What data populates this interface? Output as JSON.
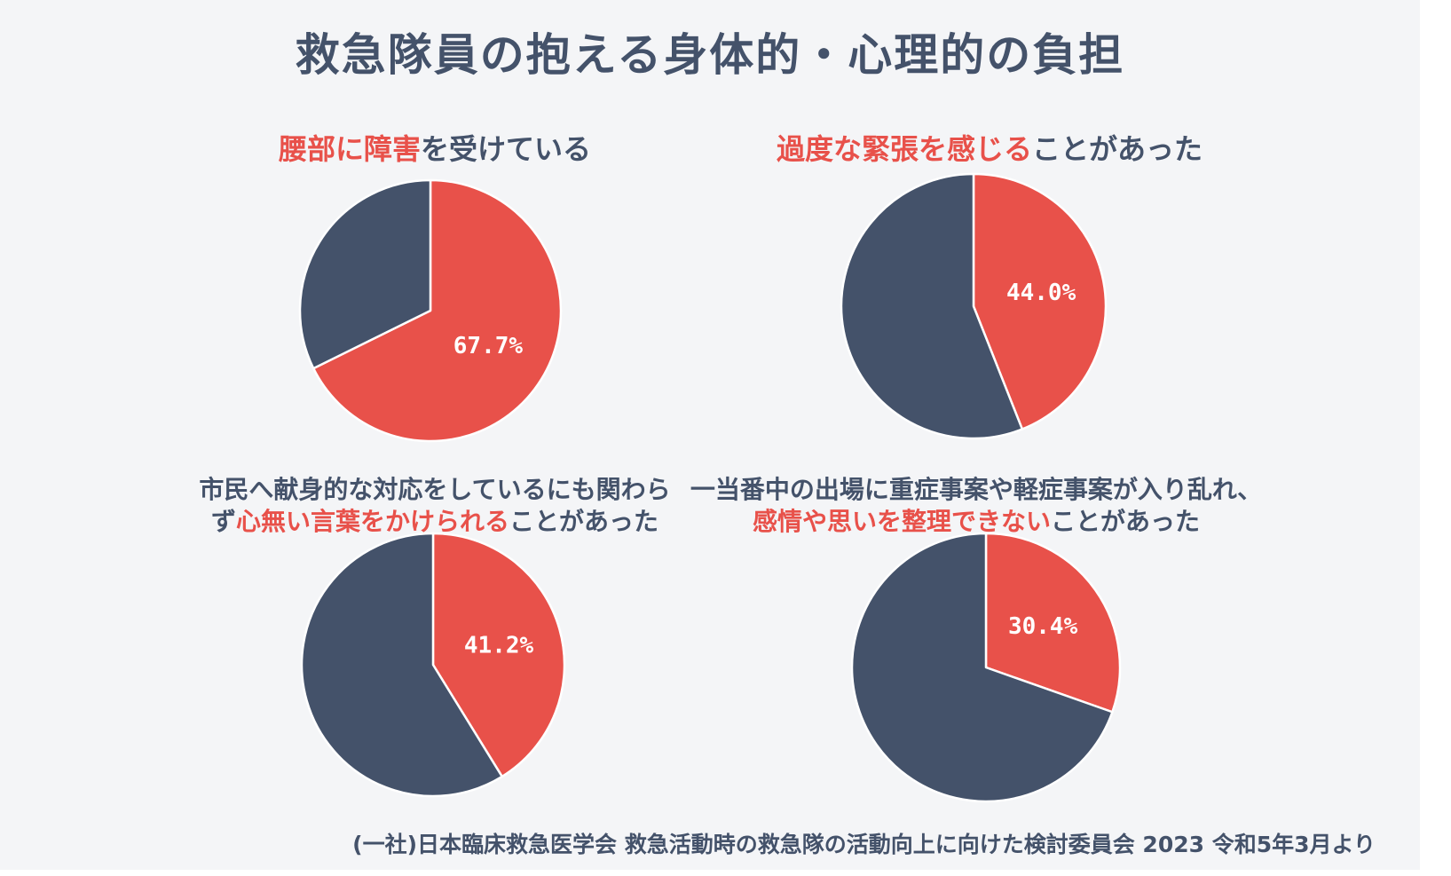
{
  "title": "救急隊員の抱える身体的・心理的の負担",
  "colors": {
    "highlight": "#e8514a",
    "base": "#44526a",
    "background": "#f4f5f7"
  },
  "charts": [
    {
      "title_lines": [
        [
          {
            "text": "腰部に障害",
            "hl": true
          },
          {
            "text": "を受けている",
            "hl": false
          }
        ]
      ]
    },
    {
      "title_lines": [
        [
          {
            "text": "過度な緊張を感じる",
            "hl": true
          },
          {
            "text": "ことがあった",
            "hl": false
          }
        ]
      ]
    },
    {
      "title_lines": [
        [
          {
            "text": "市民へ献身的な対応をしているにも関わら",
            "hl": false
          }
        ],
        [
          {
            "text": "ず",
            "hl": false
          },
          {
            "text": "心無い言葉をかけられる",
            "hl": true
          },
          {
            "text": "ことがあった",
            "hl": false
          }
        ]
      ]
    },
    {
      "title_lines": [
        [
          {
            "text": "一当番中の出場に重症事案や軽症事案が入り乱れ、",
            "hl": false
          }
        ],
        [
          {
            "text": "感情や思いを整理できない",
            "hl": true
          },
          {
            "text": "ことがあった",
            "hl": false
          }
        ]
      ]
    }
  ],
  "chart_data": [
    {
      "type": "pie",
      "values": [
        67.7,
        32.3
      ],
      "labels": [
        "67.7%",
        ""
      ],
      "colors": [
        "#e8514a",
        "#44526a"
      ]
    },
    {
      "type": "pie",
      "values": [
        44.0,
        56.0
      ],
      "labels": [
        "44.0%",
        ""
      ],
      "colors": [
        "#e8514a",
        "#44526a"
      ]
    },
    {
      "type": "pie",
      "values": [
        41.2,
        58.8
      ],
      "labels": [
        "41.2%",
        ""
      ],
      "colors": [
        "#e8514a",
        "#44526a"
      ]
    },
    {
      "type": "pie",
      "values": [
        30.4,
        69.6
      ],
      "labels": [
        "30.4%",
        ""
      ],
      "colors": [
        "#e8514a",
        "#44526a"
      ]
    }
  ],
  "source": "(一社)日本臨床救急医学会 救急活動時の救急隊の活動向上に向けた検討委員会 2023 令和5年3月より"
}
